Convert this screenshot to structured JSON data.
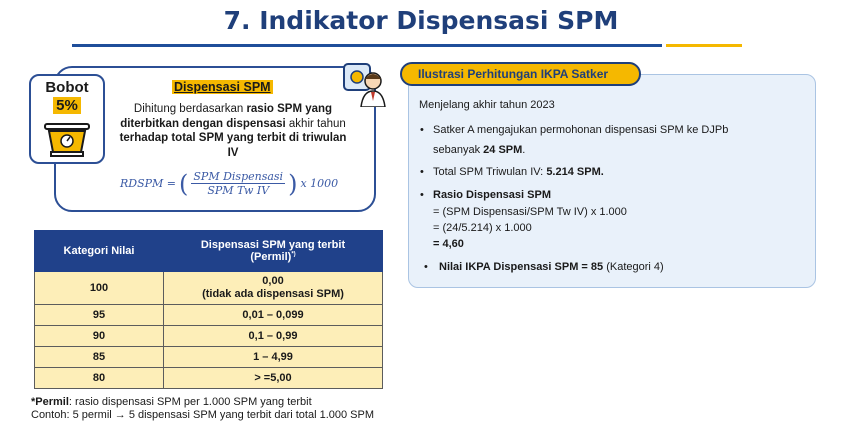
{
  "title": "7. Indikator Dispensasi SPM",
  "bobot": {
    "label": "Bobot",
    "value": "5%"
  },
  "card": {
    "heading": "Dispensasi SPM",
    "desc_1": "Dihitung berdasarkan ",
    "desc_2": "rasio SPM yang diterbitkan dengan dispensasi",
    "desc_3": " akhir tahun ",
    "desc_4": "terhadap total SPM yang terbit di triwulan IV",
    "formula_lhs": "RDSPM = ",
    "formula_num": "SPM Dispensasi",
    "formula_den": "SPM Tw IV",
    "formula_rhs": "x 1000"
  },
  "table": {
    "headers": [
      "Kategori Nilai",
      "Dispensasi SPM yang terbit",
      "(Permil)",
      "*)"
    ],
    "rows": [
      {
        "kategori": "100",
        "nilai": "0,00",
        "nilai2": "(tidak ada dispensasi SPM)"
      },
      {
        "kategori": "95",
        "nilai": "0,01 – 0,099"
      },
      {
        "kategori": "90",
        "nilai": "0,1 – 0,99"
      },
      {
        "kategori": "85",
        "nilai": "1 – 4,99"
      },
      {
        "kategori": "80",
        "nilai": "> =5,00"
      }
    ]
  },
  "footnote": {
    "line1_bold": "*Permil",
    "line1_rest": ": rasio dispensasi SPM per 1.000 SPM yang terbit",
    "line2": "Contoh: 5 permil → 5 dispensasi SPM yang terbit dari total 1.000 SPM"
  },
  "panel": {
    "pill": "Ilustrasi Perhitungan IKPA Satker",
    "intro": "Menjelang akhir tahun 2023",
    "b1a": "Satker A mengajukan permohonan dispensasi SPM ke DJPb",
    "b1b": "sebanyak ",
    "b1c": "24 SPM",
    "b1d": ".",
    "b2a": "Total SPM Triwulan IV: ",
    "b2b": "5.214 SPM.",
    "b3": "Rasio Dispensasi SPM",
    "b3l1": "= (SPM Dispensasi/SPM Tw IV) x 1.000",
    "b3l2": "= (24/5.214) x 1.000",
    "b3l3": "= 4,60",
    "b4a": "Nilai IKPA Dispensasi SPM = 85",
    "b4b": " (Kategori 4)",
    "bullet": "•"
  },
  "colors": {
    "navy": "#1f3f7a",
    "gold": "#f5b800",
    "table_fill": "#fdeeb8",
    "panel_bg": "#e9f1fa"
  }
}
